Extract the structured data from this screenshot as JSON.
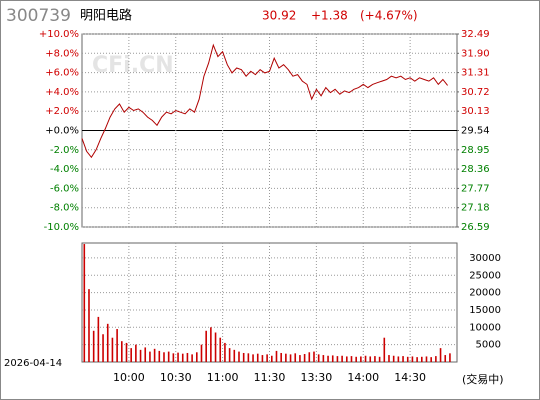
{
  "chart_data": [
    {
      "type": "line",
      "code": "300739",
      "name": "明阳电路",
      "watermark": "CFi.CN",
      "last_price": 30.92,
      "change": {
        "value": 1.38,
        "label": "+1.38"
      },
      "change_pct": {
        "value": 4.67,
        "label": "(+4.67%)"
      },
      "x": [
        "09:30",
        "09:33",
        "09:36",
        "09:39",
        "09:42",
        "09:45",
        "09:48",
        "09:51",
        "09:54",
        "09:57",
        "10:00",
        "10:03",
        "10:06",
        "10:09",
        "10:12",
        "10:15",
        "10:18",
        "10:21",
        "10:24",
        "10:27",
        "10:30",
        "10:33",
        "10:36",
        "10:39",
        "10:42",
        "10:45",
        "10:48",
        "10:51",
        "10:54",
        "10:57",
        "11:00",
        "11:03",
        "11:06",
        "11:09",
        "11:12",
        "11:15",
        "11:18",
        "11:21",
        "11:24",
        "11:27",
        "11:30",
        "13:03",
        "13:06",
        "13:09",
        "13:12",
        "13:15",
        "13:18",
        "13:21",
        "13:24",
        "13:27",
        "13:30",
        "13:33",
        "13:36",
        "13:39",
        "13:42",
        "13:45",
        "13:48",
        "13:51",
        "13:54",
        "13:57",
        "14:00",
        "14:03",
        "14:06",
        "14:09",
        "14:12",
        "14:15",
        "14:18",
        "14:21",
        "14:24",
        "14:27",
        "14:30",
        "14:33",
        "14:36",
        "14:39",
        "14:42",
        "14:45",
        "14:48",
        "14:51",
        "14:54"
      ],
      "series": [
        {
          "axis": "y2",
          "color": "#b00000",
          "values": [
            29.3,
            28.9,
            28.72,
            28.95,
            29.3,
            29.6,
            29.95,
            30.2,
            30.35,
            30.1,
            30.25,
            30.15,
            30.2,
            30.1,
            29.95,
            29.85,
            29.7,
            29.95,
            30.1,
            30.05,
            30.15,
            30.1,
            30.05,
            30.2,
            30.1,
            30.5,
            31.2,
            31.6,
            32.15,
            31.8,
            31.95,
            31.55,
            31.3,
            31.45,
            31.4,
            31.2,
            31.35,
            31.25,
            31.4,
            31.3,
            31.35,
            31.75,
            31.45,
            31.55,
            31.4,
            31.2,
            31.25,
            31.05,
            30.95,
            30.5,
            30.8,
            30.6,
            30.85,
            30.7,
            30.8,
            30.65,
            30.75,
            30.7,
            30.8,
            30.85,
            30.95,
            30.85,
            30.95,
            31.0,
            31.05,
            31.1,
            31.2,
            31.15,
            31.2,
            31.1,
            31.15,
            31.05,
            31.15,
            31.1,
            31.05,
            31.15,
            30.95,
            31.1,
            30.92
          ]
        }
      ],
      "ylim": [
        -10,
        10
      ],
      "yticks": [
        {
          "value": 10,
          "label": "+10.0%"
        },
        {
          "value": 8,
          "label": "+8.0%"
        },
        {
          "value": 6,
          "label": "+6.0%"
        },
        {
          "value": 4,
          "label": "+4.0%"
        },
        {
          "value": 2,
          "label": "+2.0%"
        },
        {
          "value": 0,
          "label": "+0.0%"
        },
        {
          "value": -2,
          "label": "-2.0%"
        },
        {
          "value": -4,
          "label": "-4.0%"
        },
        {
          "value": -6,
          "label": "-6.0%"
        },
        {
          "value": -8,
          "label": "-8.0%"
        },
        {
          "value": -10,
          "label": "-10.0%"
        }
      ],
      "y2lim": [
        26.59,
        32.49
      ],
      "y2ticks": [
        32.49,
        {
          "value": 31.9,
          "label": "31.90"
        },
        31.31,
        30.72,
        30.13,
        29.54,
        28.95,
        28.36,
        27.77,
        27.18,
        26.59
      ],
      "xticks": [
        "10:00",
        "10:30",
        "11:00",
        "11:30",
        "13:30",
        "14:00",
        "14:30"
      ],
      "up_color": "#d00000",
      "down_color": "#008000",
      "flat_color": "#000000",
      "grid": true
    },
    {
      "type": "bar",
      "date": "2026-04-14",
      "status": "(交易中)",
      "color": "#cc0000",
      "x": [
        "09:30",
        "09:33",
        "09:36",
        "09:39",
        "09:42",
        "09:45",
        "09:48",
        "09:51",
        "09:54",
        "09:57",
        "10:00",
        "10:03",
        "10:06",
        "10:09",
        "10:12",
        "10:15",
        "10:18",
        "10:21",
        "10:24",
        "10:27",
        "10:30",
        "10:33",
        "10:36",
        "10:39",
        "10:42",
        "10:45",
        "10:48",
        "10:51",
        "10:54",
        "10:57",
        "11:00",
        "11:03",
        "11:06",
        "11:09",
        "11:12",
        "11:15",
        "11:18",
        "11:21",
        "11:24",
        "11:27",
        "11:30",
        "13:03",
        "13:06",
        "13:09",
        "13:12",
        "13:15",
        "13:18",
        "13:21",
        "13:24",
        "13:27",
        "13:30",
        "13:33",
        "13:36",
        "13:39",
        "13:42",
        "13:45",
        "13:48",
        "13:51",
        "13:54",
        "13:57",
        "14:00",
        "14:03",
        "14:06",
        "14:09",
        "14:12",
        "14:15",
        "14:18",
        "14:21",
        "14:24",
        "14:27",
        "14:30",
        "14:33",
        "14:36",
        "14:39",
        "14:42",
        "14:45",
        "14:48",
        "14:51",
        "14:54"
      ],
      "values": [
        34000,
        21000,
        9000,
        13000,
        8000,
        11000,
        7000,
        9500,
        6000,
        5500,
        4000,
        5000,
        3500,
        4200,
        3000,
        3800,
        3200,
        2800,
        3000,
        2500,
        2700,
        2400,
        2600,
        2200,
        2800,
        5000,
        9000,
        10000,
        8500,
        7000,
        5500,
        4000,
        3500,
        3000,
        2600,
        2500,
        2200,
        2400,
        2000,
        2200,
        1800,
        3200,
        2600,
        2400,
        2200,
        2500,
        2000,
        2300,
        2800,
        3000,
        2200,
        2000,
        1800,
        1900,
        1700,
        1800,
        1600,
        1700,
        1500,
        1600,
        1800,
        1600,
        1700,
        1500,
        7000,
        2000,
        1800,
        1600,
        1700,
        1500,
        1600,
        1400,
        1500,
        1600,
        1400,
        1700,
        4000,
        2000,
        2500
      ],
      "ylim": [
        0,
        34300
      ],
      "yticks": [
        30000,
        25000,
        20000,
        15000,
        10000,
        5000
      ],
      "xticks": [
        "10:00",
        "10:30",
        "11:00",
        "11:30",
        "13:30",
        "14:00",
        "14:30"
      ],
      "grid": true
    }
  ]
}
